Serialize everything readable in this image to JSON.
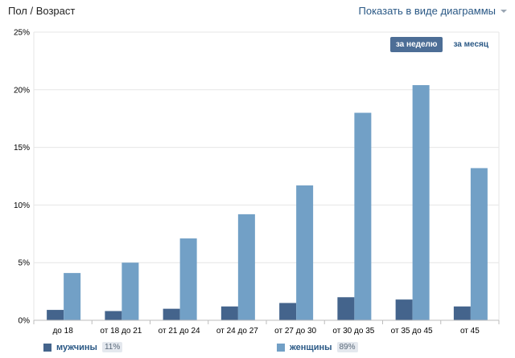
{
  "header": {
    "title": "Пол / Возраст",
    "mode_label": "Показать в виде диаграммы"
  },
  "period": {
    "week_label": "за неделю",
    "month_label": "за месяц"
  },
  "colors": {
    "men": "#44648c",
    "women": "#72a0c6",
    "grid": "#e6e6e6",
    "axis": "#bdbdbd"
  },
  "legend": {
    "men_label": "мужчины",
    "men_pct": "11%",
    "women_label": "женщины",
    "women_pct": "89%"
  },
  "chart_data": {
    "type": "bar",
    "title": "",
    "xlabel": "",
    "ylabel": "",
    "ylim": [
      0,
      25
    ],
    "yticks": [
      0,
      5,
      10,
      15,
      20,
      25
    ],
    "ytick_labels": [
      "0%",
      "5%",
      "10%",
      "15%",
      "20%",
      "25%"
    ],
    "grid": true,
    "legend_position": "bottom",
    "categories": [
      "до 18",
      "от 18 до 21",
      "от 21 до 24",
      "от 24 до 27",
      "от 27 до 30",
      "от 30 до 35",
      "от 35 до 45",
      "от 45"
    ],
    "series": [
      {
        "name": "мужчины",
        "values": [
          0.9,
          0.8,
          1.0,
          1.2,
          1.5,
          2.0,
          1.8,
          1.2
        ]
      },
      {
        "name": "женщины",
        "values": [
          4.1,
          5.0,
          7.1,
          9.2,
          11.7,
          18.0,
          20.4,
          13.2
        ]
      }
    ]
  }
}
